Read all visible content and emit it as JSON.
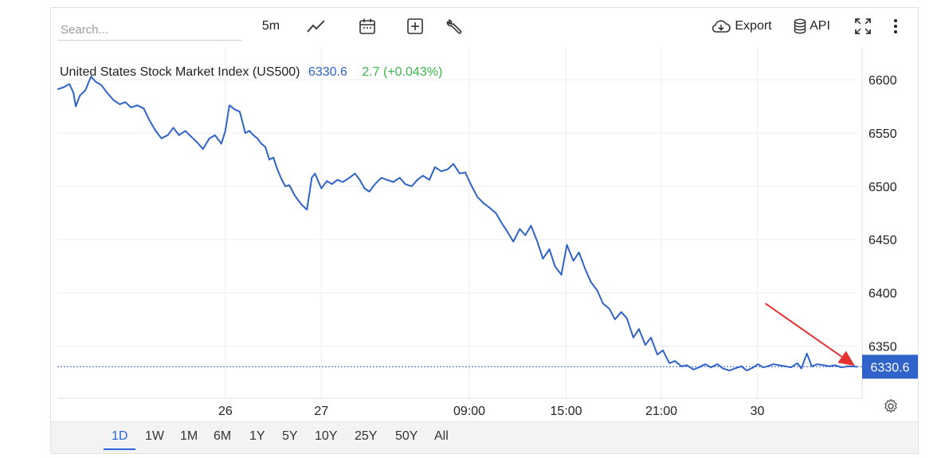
{
  "toolbar": {
    "search_placeholder": "Search...",
    "interval_label": "5m",
    "export_label": "Export",
    "api_label": "API",
    "icons": [
      "line-chart-icon",
      "calendar-icon",
      "add-indicator-icon",
      "wrench-icon",
      "cloud-download-icon",
      "database-icon",
      "fullscreen-icon",
      "more-vertical-icon"
    ]
  },
  "legend": {
    "name": "United States Stock Market Index (US500)",
    "price": "6330.6",
    "change": "2.7 (+0.043%)",
    "price_color": "#2f63c9",
    "change_color": "#3ab54a"
  },
  "chart_data": {
    "type": "line",
    "title": "",
    "xlabel": "",
    "ylabel": "",
    "ylim": [
      6301,
      6630
    ],
    "yticks": [
      6350,
      6400,
      6450,
      6500,
      6550,
      6600
    ],
    "xticks": [
      {
        "label": "26",
        "t": 0.21
      },
      {
        "label": "27",
        "t": 0.33
      },
      {
        "label": "09:00",
        "t": 0.515
      },
      {
        "label": "15:00",
        "t": 0.636
      },
      {
        "label": "21:00",
        "t": 0.755
      },
      {
        "label": "30",
        "t": 0.875
      }
    ],
    "series": [
      {
        "name": "",
        "color": "#2f63c9",
        "x": [
          0,
          0.008,
          0.015,
          0.02,
          0.023,
          0.028,
          0.035,
          0.042,
          0.048,
          0.055,
          0.062,
          0.07,
          0.078,
          0.085,
          0.092,
          0.1,
          0.108,
          0.115,
          0.122,
          0.13,
          0.138,
          0.145,
          0.152,
          0.16,
          0.168,
          0.175,
          0.182,
          0.19,
          0.197,
          0.205,
          0.21,
          0.215,
          0.222,
          0.228,
          0.235,
          0.24,
          0.245,
          0.25,
          0.255,
          0.26,
          0.265,
          0.27,
          0.275,
          0.28,
          0.285,
          0.29,
          0.297,
          0.305,
          0.312,
          0.318,
          0.322,
          0.33,
          0.337,
          0.343,
          0.35,
          0.357,
          0.365,
          0.372,
          0.378,
          0.384,
          0.39,
          0.397,
          0.405,
          0.412,
          0.42,
          0.428,
          0.435,
          0.443,
          0.45,
          0.457,
          0.465,
          0.472,
          0.48,
          0.488,
          0.495,
          0.503,
          0.51,
          0.518,
          0.525,
          0.533,
          0.54,
          0.548,
          0.555,
          0.562,
          0.57,
          0.578,
          0.585,
          0.592,
          0.6,
          0.607,
          0.615,
          0.622,
          0.63,
          0.637,
          0.645,
          0.652,
          0.66,
          0.667,
          0.675,
          0.682,
          0.69,
          0.697,
          0.705,
          0.712,
          0.72,
          0.727,
          0.735,
          0.742,
          0.75,
          0.757,
          0.765,
          0.772,
          0.78,
          0.787,
          0.795,
          0.802,
          0.81,
          0.817,
          0.825,
          0.832,
          0.84,
          0.847,
          0.855,
          0.862,
          0.87,
          0.876,
          0.882,
          0.888,
          0.895,
          0.902,
          0.91,
          0.917,
          0.925,
          0.93,
          0.937,
          0.943,
          0.95,
          0.958,
          0.965,
          0.972,
          0.98,
          0.988,
          1.0
        ],
        "values": [
          6591,
          6593,
          6596,
          6588,
          6575,
          6585,
          6590,
          6603,
          6598,
          6595,
          6588,
          6581,
          6577,
          6579,
          6574,
          6576,
          6573,
          6562,
          6553,
          6545,
          6548,
          6555,
          6548,
          6552,
          6546,
          6541,
          6535,
          6545,
          6548,
          6540,
          6552,
          6576,
          6572,
          6570,
          6550,
          6552,
          6548,
          6545,
          6540,
          6537,
          6525,
          6527,
          6516,
          6507,
          6500,
          6501,
          6491,
          6483,
          6478,
          6508,
          6512,
          6498,
          6505,
          6502,
          6506,
          6504,
          6508,
          6512,
          6506,
          6498,
          6495,
          6502,
          6508,
          6506,
          6504,
          6508,
          6502,
          6500,
          6506,
          6510,
          6506,
          6518,
          6514,
          6516,
          6521,
          6512,
          6513,
          6500,
          6490,
          6484,
          6480,
          6475,
          6466,
          6458,
          6448,
          6460,
          6454,
          6463,
          6448,
          6432,
          6441,
          6425,
          6417,
          6445,
          6430,
          6438,
          6422,
          6410,
          6402,
          6390,
          6385,
          6375,
          6382,
          6376,
          6358,
          6366,
          6351,
          6358,
          6342,
          6346,
          6334,
          6336,
          6331,
          6332,
          6328,
          6330,
          6333,
          6330,
          6333,
          6329,
          6327,
          6329,
          6331,
          6327,
          6330,
          6333,
          6330,
          6331,
          6333,
          6332,
          6331,
          6330,
          6334,
          6329,
          6343,
          6331,
          6333,
          6332,
          6331,
          6332,
          6330,
          6331,
          6330.6
        ]
      }
    ],
    "last_value_label": "6330.6",
    "last_value_color": "#2f63c9",
    "grid": true,
    "annotation": {
      "type": "arrow",
      "color": "#e53030"
    }
  },
  "timeframes": {
    "items": [
      "1D",
      "1W",
      "1M",
      "6M",
      "1Y",
      "5Y",
      "10Y",
      "25Y",
      "50Y",
      "All"
    ],
    "active": "1D"
  }
}
